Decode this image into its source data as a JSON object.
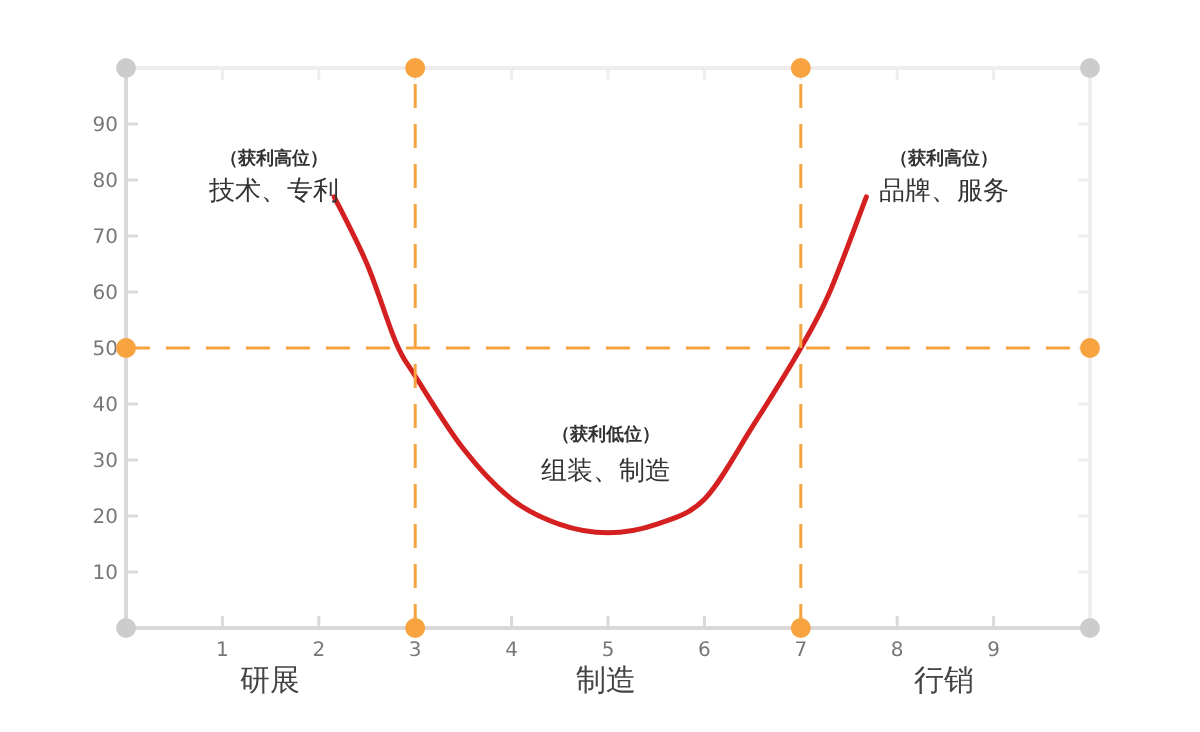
{
  "chart_data": {
    "type": "line",
    "x": [
      2.16,
      2.5,
      2.8,
      3,
      3.5,
      4,
      4.5,
      5,
      5.5,
      6,
      6.5,
      7,
      7.3,
      7.68
    ],
    "series": [
      {
        "color": "#d42020",
        "values": [
          77,
          65,
          51,
          45,
          32,
          23,
          18.5,
          17,
          18.5,
          23,
          36,
          50,
          60,
          77
        ]
      }
    ],
    "xlim": [
      0,
      10
    ],
    "ylim": [
      0,
      100
    ],
    "xticks": [
      1,
      2,
      3,
      4,
      5,
      6,
      7,
      8,
      9
    ],
    "yticks": [
      10,
      20,
      30,
      40,
      50,
      60,
      70,
      80,
      90
    ],
    "grid": false,
    "marker": "none",
    "line_style": "solid",
    "ref_lines": [
      {
        "axis": "x",
        "value": 3,
        "color": "#f7a440",
        "line_style": "dashed"
      },
      {
        "axis": "x",
        "value": 7,
        "color": "#f7a440",
        "line_style": "dashed"
      },
      {
        "axis": "y",
        "value": 50,
        "color": "#f7a440",
        "line_style": "dashed"
      }
    ],
    "annotations": [
      "（获利高位）",
      "技术、专利",
      "（获利低位）",
      "组装、制造",
      "（获利高位）",
      "品牌、服务",
      "研展",
      "制造",
      "行销"
    ]
  }
}
